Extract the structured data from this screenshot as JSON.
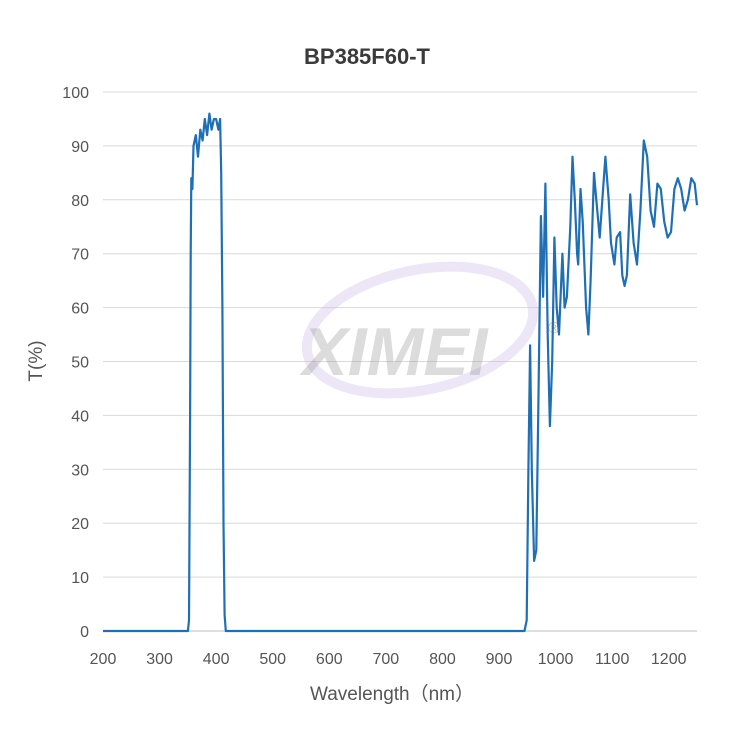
{
  "chart_data": {
    "type": "line",
    "title": "BP385F60-T",
    "xlabel": "Wavelength（nm）",
    "ylabel": "T(%)",
    "xlim": [
      200,
      1250
    ],
    "ylim": [
      0,
      100
    ],
    "x_ticks": [
      200,
      300,
      400,
      500,
      600,
      700,
      800,
      900,
      1000,
      1100,
      1200
    ],
    "y_ticks": [
      0,
      10,
      20,
      30,
      40,
      50,
      60,
      70,
      80,
      90,
      100
    ],
    "grid": true,
    "legend": "none",
    "series": [
      {
        "color": "#1f6fb4",
        "points": [
          [
            200,
            0
          ],
          [
            350,
            0
          ],
          [
            352,
            2
          ],
          [
            354,
            40
          ],
          [
            355,
            70
          ],
          [
            356,
            84
          ],
          [
            358,
            82
          ],
          [
            360,
            90
          ],
          [
            364,
            92
          ],
          [
            368,
            88
          ],
          [
            372,
            93
          ],
          [
            376,
            91
          ],
          [
            380,
            95
          ],
          [
            384,
            92
          ],
          [
            388,
            96
          ],
          [
            392,
            93
          ],
          [
            396,
            95
          ],
          [
            400,
            95
          ],
          [
            404,
            93
          ],
          [
            407,
            95
          ],
          [
            409,
            85
          ],
          [
            411,
            60
          ],
          [
            413,
            20
          ],
          [
            415,
            3
          ],
          [
            417,
            0
          ],
          [
            945,
            0
          ],
          [
            949,
            2
          ],
          [
            952,
            30
          ],
          [
            955,
            53
          ],
          [
            958,
            30
          ],
          [
            962,
            13
          ],
          [
            966,
            15
          ],
          [
            970,
            45
          ],
          [
            974,
            77
          ],
          [
            978,
            62
          ],
          [
            982,
            83
          ],
          [
            986,
            55
          ],
          [
            990,
            38
          ],
          [
            994,
            50
          ],
          [
            998,
            73
          ],
          [
            1002,
            60
          ],
          [
            1006,
            55
          ],
          [
            1012,
            70
          ],
          [
            1016,
            60
          ],
          [
            1020,
            62
          ],
          [
            1026,
            75
          ],
          [
            1030,
            88
          ],
          [
            1034,
            80
          ],
          [
            1038,
            70
          ],
          [
            1040,
            68
          ],
          [
            1044,
            82
          ],
          [
            1048,
            76
          ],
          [
            1054,
            60
          ],
          [
            1058,
            55
          ],
          [
            1062,
            65
          ],
          [
            1068,
            85
          ],
          [
            1072,
            80
          ],
          [
            1078,
            73
          ],
          [
            1084,
            82
          ],
          [
            1088,
            88
          ],
          [
            1094,
            80
          ],
          [
            1098,
            72
          ],
          [
            1104,
            68
          ],
          [
            1108,
            73
          ],
          [
            1114,
            74
          ],
          [
            1118,
            66
          ],
          [
            1122,
            64
          ],
          [
            1126,
            66
          ],
          [
            1132,
            81
          ],
          [
            1138,
            72
          ],
          [
            1144,
            68
          ],
          [
            1150,
            78
          ],
          [
            1156,
            91
          ],
          [
            1162,
            88
          ],
          [
            1168,
            78
          ],
          [
            1174,
            75
          ],
          [
            1180,
            83
          ],
          [
            1186,
            82
          ],
          [
            1192,
            76
          ],
          [
            1198,
            73
          ],
          [
            1204,
            74
          ],
          [
            1210,
            82
          ],
          [
            1216,
            84
          ],
          [
            1222,
            82
          ],
          [
            1228,
            78
          ],
          [
            1234,
            80
          ],
          [
            1240,
            84
          ],
          [
            1246,
            83
          ],
          [
            1250,
            79
          ]
        ]
      }
    ]
  },
  "watermark": {
    "text": "XIMEI",
    "mark": "®"
  }
}
